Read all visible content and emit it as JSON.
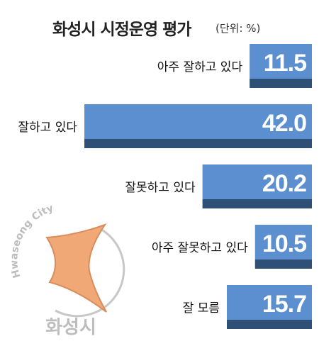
{
  "chart_data": {
    "type": "bar",
    "orientation": "horizontal",
    "title": "화성시 시정운영 평가",
    "unit_label": "(단위: %)",
    "categories": [
      "아주 잘하고 있다",
      "잘하고 있다",
      "잘못하고 있다",
      "아주 잘못하고 있다",
      "잘 모름"
    ],
    "values": [
      11.5,
      42.0,
      20.2,
      10.5,
      15.7
    ],
    "value_labels": [
      "11.5",
      "42.0",
      "20.2",
      "10.5",
      "15.7"
    ],
    "xlim": [
      0,
      42.0
    ],
    "grid": false,
    "legend": "none",
    "colors": {
      "bar": "#5b8fcf",
      "bar_shadow": "#2e5076",
      "value_text": "#ffffff",
      "label_text": "#111111"
    }
  },
  "watermark": {
    "logo_text": "Hwaseong City",
    "logo_text_ko": "화성시",
    "colors": {
      "star": "#f0a877",
      "star_stroke": "#d98c5c",
      "ring": "#c8c8c8",
      "text": "#bdbdbd"
    }
  }
}
